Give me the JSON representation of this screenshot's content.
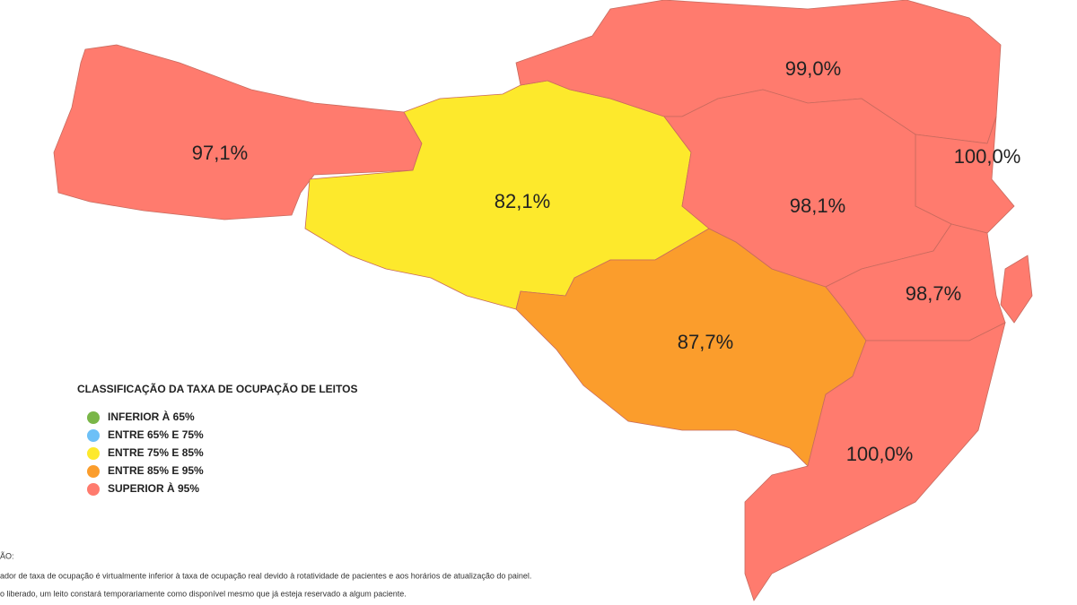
{
  "map": {
    "regions": [
      {
        "label": "97,1%",
        "color": "#ff7b6e"
      },
      {
        "label": "82,1%",
        "color": "#fde92c"
      },
      {
        "label": "87,7%",
        "color": "#fb9d2c"
      },
      {
        "label": "99,0%",
        "color": "#ff7b6e"
      },
      {
        "label": "100,0%",
        "color": "#ff7b6e"
      },
      {
        "label": "98,1%",
        "color": "#ff7b6e"
      },
      {
        "label": "98,7%",
        "color": "#ff7b6e"
      },
      {
        "label": "100,0%",
        "color": "#ff7b6e"
      }
    ]
  },
  "legend": {
    "title": "CLASSIFICAÇÃO DA TAXA DE OCUPAÇÃO DE LEITOS",
    "items": [
      {
        "label": "INFERIOR À 65%",
        "color": "#7ab648"
      },
      {
        "label": "ENTRE 65% E 75%",
        "color": "#6dc0f7"
      },
      {
        "label": "ENTRE 75% E 85%",
        "color": "#fde92c"
      },
      {
        "label": "ENTRE 85% E 95%",
        "color": "#fb9d2c"
      },
      {
        "label": "SUPERIOR À 95%",
        "color": "#ff7b6e"
      }
    ]
  },
  "notes": {
    "title": "ÃO:",
    "lines": [
      "ador de taxa de ocupação é virtualmente inferior à taxa de ocupação real devido à rotatividade de pacientes e aos horários de atualização do painel.",
      "o liberado, um leito constará temporariamente como disponível mesmo que já esteja reservado a algum paciente."
    ]
  }
}
